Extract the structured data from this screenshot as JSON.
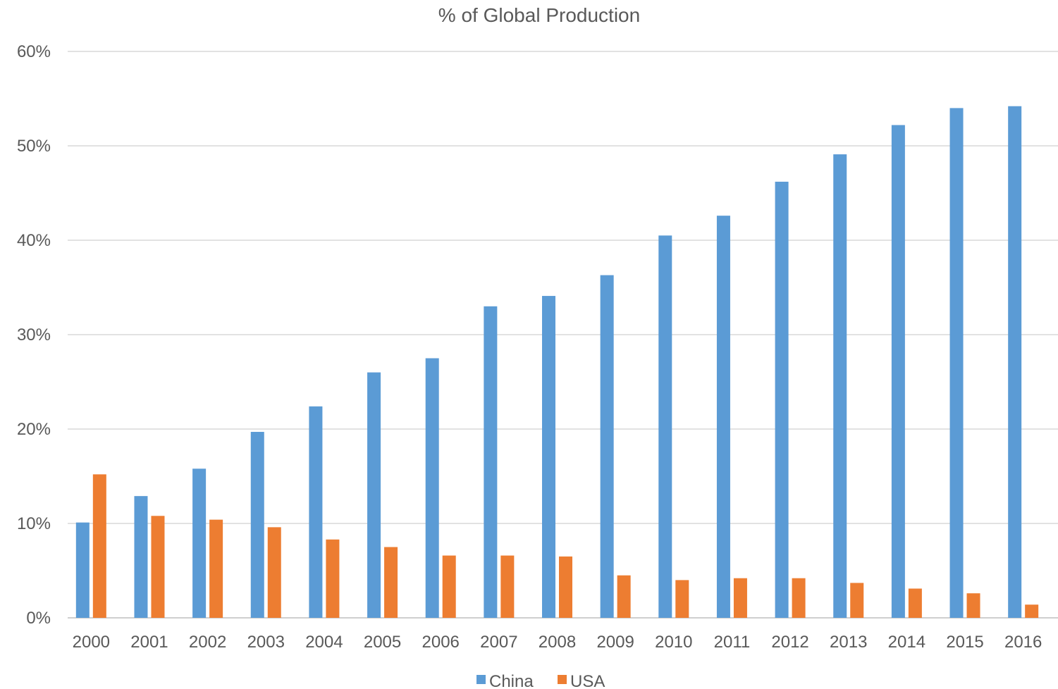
{
  "chart_data": {
    "type": "bar",
    "title": "% of Global Production",
    "xlabel": "",
    "ylabel": "",
    "categories": [
      "2000",
      "2001",
      "2002",
      "2003",
      "2004",
      "2005",
      "2006",
      "2007",
      "2008",
      "2009",
      "2010",
      "2011",
      "2012",
      "2013",
      "2014",
      "2015",
      "2016"
    ],
    "series": [
      {
        "name": "China",
        "color": "#5b9bd5",
        "values": [
          10.1,
          12.9,
          15.8,
          19.7,
          22.4,
          26.0,
          27.5,
          33.0,
          34.1,
          36.3,
          40.5,
          42.6,
          46.2,
          49.1,
          52.2,
          54.0,
          54.2
        ]
      },
      {
        "name": "USA",
        "color": "#ed7d31",
        "values": [
          15.2,
          10.8,
          10.4,
          9.6,
          8.3,
          7.5,
          6.6,
          6.6,
          6.5,
          4.5,
          4.0,
          4.2,
          4.2,
          3.7,
          3.1,
          2.6,
          1.4
        ]
      }
    ],
    "ylim": [
      0,
      60
    ],
    "yticks": [
      0,
      10,
      20,
      30,
      40,
      50,
      60
    ],
    "ytick_labels": [
      "0%",
      "10%",
      "20%",
      "30%",
      "40%",
      "50%",
      "60%"
    ],
    "grid": true,
    "legend_position": "bottom"
  }
}
